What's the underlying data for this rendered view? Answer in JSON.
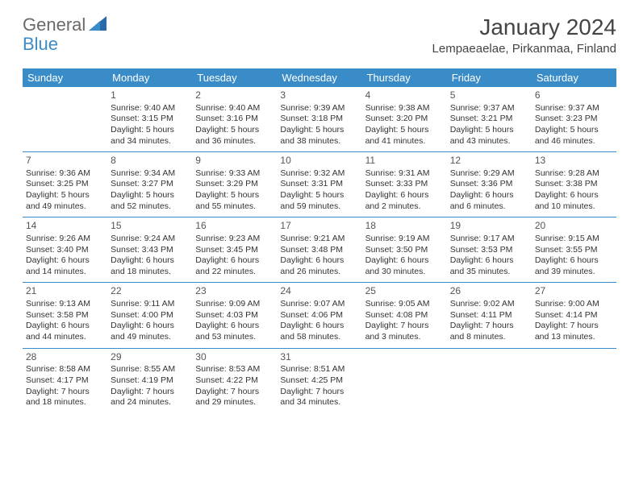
{
  "header": {
    "logo_general": "General",
    "logo_blue": "Blue",
    "month_title": "January 2024",
    "location": "Lempaeaelae, Pirkanmaa, Finland"
  },
  "weekdays": [
    "Sunday",
    "Monday",
    "Tuesday",
    "Wednesday",
    "Thursday",
    "Friday",
    "Saturday"
  ],
  "colors": {
    "header_bg": "#3a8cc8",
    "header_text": "#ffffff",
    "cell_border": "#3a8cc8",
    "text": "#333333",
    "logo_gray": "#6a6a6a",
    "logo_blue": "#3a8cc8"
  },
  "weeks": [
    [
      {
        "day": "",
        "sunrise": "",
        "sunset": "",
        "daylight1": "",
        "daylight2": ""
      },
      {
        "day": "1",
        "sunrise": "Sunrise: 9:40 AM",
        "sunset": "Sunset: 3:15 PM",
        "daylight1": "Daylight: 5 hours",
        "daylight2": "and 34 minutes."
      },
      {
        "day": "2",
        "sunrise": "Sunrise: 9:40 AM",
        "sunset": "Sunset: 3:16 PM",
        "daylight1": "Daylight: 5 hours",
        "daylight2": "and 36 minutes."
      },
      {
        "day": "3",
        "sunrise": "Sunrise: 9:39 AM",
        "sunset": "Sunset: 3:18 PM",
        "daylight1": "Daylight: 5 hours",
        "daylight2": "and 38 minutes."
      },
      {
        "day": "4",
        "sunrise": "Sunrise: 9:38 AM",
        "sunset": "Sunset: 3:20 PM",
        "daylight1": "Daylight: 5 hours",
        "daylight2": "and 41 minutes."
      },
      {
        "day": "5",
        "sunrise": "Sunrise: 9:37 AM",
        "sunset": "Sunset: 3:21 PM",
        "daylight1": "Daylight: 5 hours",
        "daylight2": "and 43 minutes."
      },
      {
        "day": "6",
        "sunrise": "Sunrise: 9:37 AM",
        "sunset": "Sunset: 3:23 PM",
        "daylight1": "Daylight: 5 hours",
        "daylight2": "and 46 minutes."
      }
    ],
    [
      {
        "day": "7",
        "sunrise": "Sunrise: 9:36 AM",
        "sunset": "Sunset: 3:25 PM",
        "daylight1": "Daylight: 5 hours",
        "daylight2": "and 49 minutes."
      },
      {
        "day": "8",
        "sunrise": "Sunrise: 9:34 AM",
        "sunset": "Sunset: 3:27 PM",
        "daylight1": "Daylight: 5 hours",
        "daylight2": "and 52 minutes."
      },
      {
        "day": "9",
        "sunrise": "Sunrise: 9:33 AM",
        "sunset": "Sunset: 3:29 PM",
        "daylight1": "Daylight: 5 hours",
        "daylight2": "and 55 minutes."
      },
      {
        "day": "10",
        "sunrise": "Sunrise: 9:32 AM",
        "sunset": "Sunset: 3:31 PM",
        "daylight1": "Daylight: 5 hours",
        "daylight2": "and 59 minutes."
      },
      {
        "day": "11",
        "sunrise": "Sunrise: 9:31 AM",
        "sunset": "Sunset: 3:33 PM",
        "daylight1": "Daylight: 6 hours",
        "daylight2": "and 2 minutes."
      },
      {
        "day": "12",
        "sunrise": "Sunrise: 9:29 AM",
        "sunset": "Sunset: 3:36 PM",
        "daylight1": "Daylight: 6 hours",
        "daylight2": "and 6 minutes."
      },
      {
        "day": "13",
        "sunrise": "Sunrise: 9:28 AM",
        "sunset": "Sunset: 3:38 PM",
        "daylight1": "Daylight: 6 hours",
        "daylight2": "and 10 minutes."
      }
    ],
    [
      {
        "day": "14",
        "sunrise": "Sunrise: 9:26 AM",
        "sunset": "Sunset: 3:40 PM",
        "daylight1": "Daylight: 6 hours",
        "daylight2": "and 14 minutes."
      },
      {
        "day": "15",
        "sunrise": "Sunrise: 9:24 AM",
        "sunset": "Sunset: 3:43 PM",
        "daylight1": "Daylight: 6 hours",
        "daylight2": "and 18 minutes."
      },
      {
        "day": "16",
        "sunrise": "Sunrise: 9:23 AM",
        "sunset": "Sunset: 3:45 PM",
        "daylight1": "Daylight: 6 hours",
        "daylight2": "and 22 minutes."
      },
      {
        "day": "17",
        "sunrise": "Sunrise: 9:21 AM",
        "sunset": "Sunset: 3:48 PM",
        "daylight1": "Daylight: 6 hours",
        "daylight2": "and 26 minutes."
      },
      {
        "day": "18",
        "sunrise": "Sunrise: 9:19 AM",
        "sunset": "Sunset: 3:50 PM",
        "daylight1": "Daylight: 6 hours",
        "daylight2": "and 30 minutes."
      },
      {
        "day": "19",
        "sunrise": "Sunrise: 9:17 AM",
        "sunset": "Sunset: 3:53 PM",
        "daylight1": "Daylight: 6 hours",
        "daylight2": "and 35 minutes."
      },
      {
        "day": "20",
        "sunrise": "Sunrise: 9:15 AM",
        "sunset": "Sunset: 3:55 PM",
        "daylight1": "Daylight: 6 hours",
        "daylight2": "and 39 minutes."
      }
    ],
    [
      {
        "day": "21",
        "sunrise": "Sunrise: 9:13 AM",
        "sunset": "Sunset: 3:58 PM",
        "daylight1": "Daylight: 6 hours",
        "daylight2": "and 44 minutes."
      },
      {
        "day": "22",
        "sunrise": "Sunrise: 9:11 AM",
        "sunset": "Sunset: 4:00 PM",
        "daylight1": "Daylight: 6 hours",
        "daylight2": "and 49 minutes."
      },
      {
        "day": "23",
        "sunrise": "Sunrise: 9:09 AM",
        "sunset": "Sunset: 4:03 PM",
        "daylight1": "Daylight: 6 hours",
        "daylight2": "and 53 minutes."
      },
      {
        "day": "24",
        "sunrise": "Sunrise: 9:07 AM",
        "sunset": "Sunset: 4:06 PM",
        "daylight1": "Daylight: 6 hours",
        "daylight2": "and 58 minutes."
      },
      {
        "day": "25",
        "sunrise": "Sunrise: 9:05 AM",
        "sunset": "Sunset: 4:08 PM",
        "daylight1": "Daylight: 7 hours",
        "daylight2": "and 3 minutes."
      },
      {
        "day": "26",
        "sunrise": "Sunrise: 9:02 AM",
        "sunset": "Sunset: 4:11 PM",
        "daylight1": "Daylight: 7 hours",
        "daylight2": "and 8 minutes."
      },
      {
        "day": "27",
        "sunrise": "Sunrise: 9:00 AM",
        "sunset": "Sunset: 4:14 PM",
        "daylight1": "Daylight: 7 hours",
        "daylight2": "and 13 minutes."
      }
    ],
    [
      {
        "day": "28",
        "sunrise": "Sunrise: 8:58 AM",
        "sunset": "Sunset: 4:17 PM",
        "daylight1": "Daylight: 7 hours",
        "daylight2": "and 18 minutes."
      },
      {
        "day": "29",
        "sunrise": "Sunrise: 8:55 AM",
        "sunset": "Sunset: 4:19 PM",
        "daylight1": "Daylight: 7 hours",
        "daylight2": "and 24 minutes."
      },
      {
        "day": "30",
        "sunrise": "Sunrise: 8:53 AM",
        "sunset": "Sunset: 4:22 PM",
        "daylight1": "Daylight: 7 hours",
        "daylight2": "and 29 minutes."
      },
      {
        "day": "31",
        "sunrise": "Sunrise: 8:51 AM",
        "sunset": "Sunset: 4:25 PM",
        "daylight1": "Daylight: 7 hours",
        "daylight2": "and 34 minutes."
      },
      {
        "day": "",
        "sunrise": "",
        "sunset": "",
        "daylight1": "",
        "daylight2": ""
      },
      {
        "day": "",
        "sunrise": "",
        "sunset": "",
        "daylight1": "",
        "daylight2": ""
      },
      {
        "day": "",
        "sunrise": "",
        "sunset": "",
        "daylight1": "",
        "daylight2": ""
      }
    ]
  ]
}
